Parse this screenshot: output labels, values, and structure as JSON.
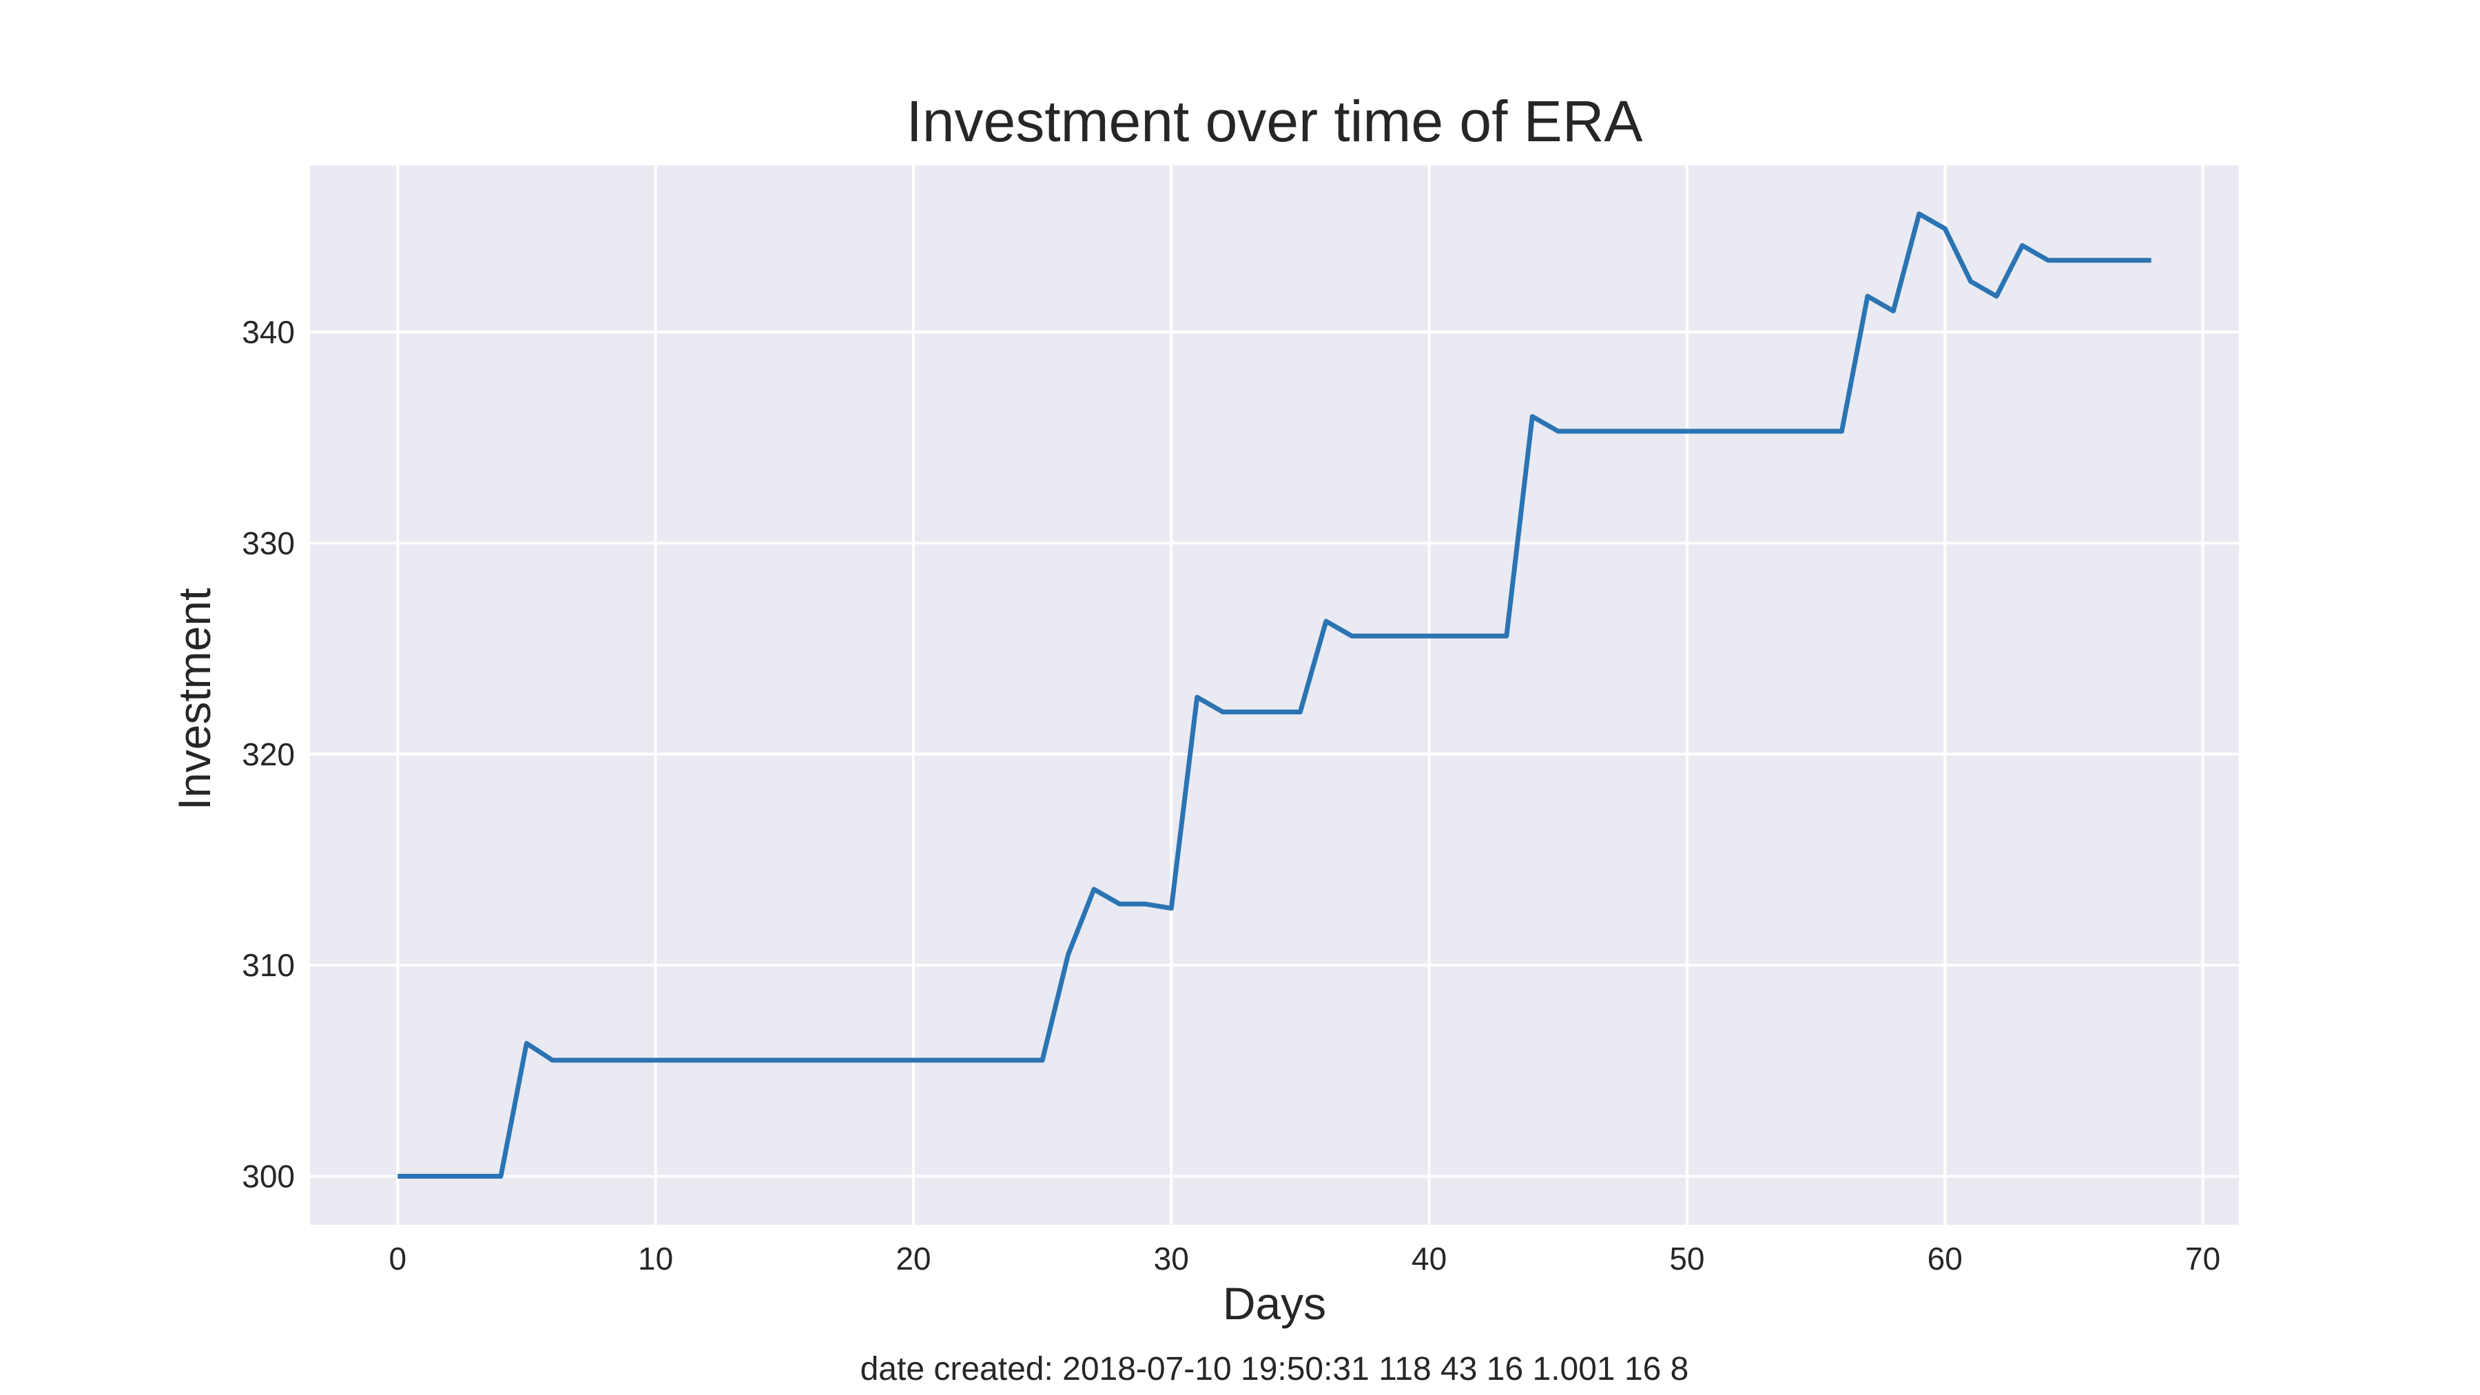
{
  "chart_data": {
    "type": "line",
    "title": "Investment over time of ERA",
    "xlabel": "Days",
    "ylabel": "Investment",
    "xlim": [
      -3.4,
      71.4
    ],
    "ylim": [
      297.7,
      347.9
    ],
    "xticks": [
      0,
      10,
      20,
      30,
      40,
      50,
      60,
      70
    ],
    "yticks": [
      300,
      310,
      320,
      330,
      340
    ],
    "grid": true,
    "legend": "none",
    "series": [
      {
        "color": "#2b74b3",
        "x": [
          0,
          1,
          2,
          3,
          4,
          5,
          6,
          7,
          8,
          9,
          10,
          11,
          12,
          13,
          14,
          15,
          16,
          17,
          18,
          19,
          20,
          21,
          22,
          23,
          24,
          25,
          26,
          27,
          28,
          29,
          30,
          31,
          32,
          33,
          34,
          35,
          36,
          37,
          38,
          39,
          40,
          41,
          42,
          43,
          44,
          45,
          46,
          47,
          48,
          49,
          50,
          51,
          52,
          53,
          54,
          55,
          56,
          57,
          58,
          59,
          60,
          61,
          62,
          63,
          64,
          65,
          66,
          67,
          68
        ],
        "y": [
          300.0,
          300.0,
          300.0,
          300.0,
          300.0,
          306.3,
          305.5,
          305.5,
          305.5,
          305.5,
          305.5,
          305.5,
          305.5,
          305.5,
          305.5,
          305.5,
          305.5,
          305.5,
          305.5,
          305.5,
          305.5,
          305.5,
          305.5,
          305.5,
          305.5,
          305.5,
          310.5,
          313.6,
          312.9,
          312.9,
          312.7,
          322.7,
          322.0,
          322.0,
          322.0,
          322.0,
          326.3,
          325.6,
          325.6,
          325.6,
          325.6,
          325.6,
          325.6,
          325.6,
          336.0,
          335.3,
          335.3,
          335.3,
          335.3,
          335.3,
          335.3,
          335.3,
          335.3,
          335.3,
          335.3,
          335.3,
          335.3,
          341.7,
          341.0,
          345.6,
          344.9,
          342.4,
          341.7,
          344.1,
          343.4,
          343.4,
          343.4,
          343.4,
          343.4
        ]
      }
    ]
  },
  "caption": "date created: 2018-07-10 19:50:31 118 43 16 1.001 16 8",
  "colors": {
    "plot_background": "#eaeaf2",
    "grid": "#ffffff",
    "text": "#262626"
  }
}
